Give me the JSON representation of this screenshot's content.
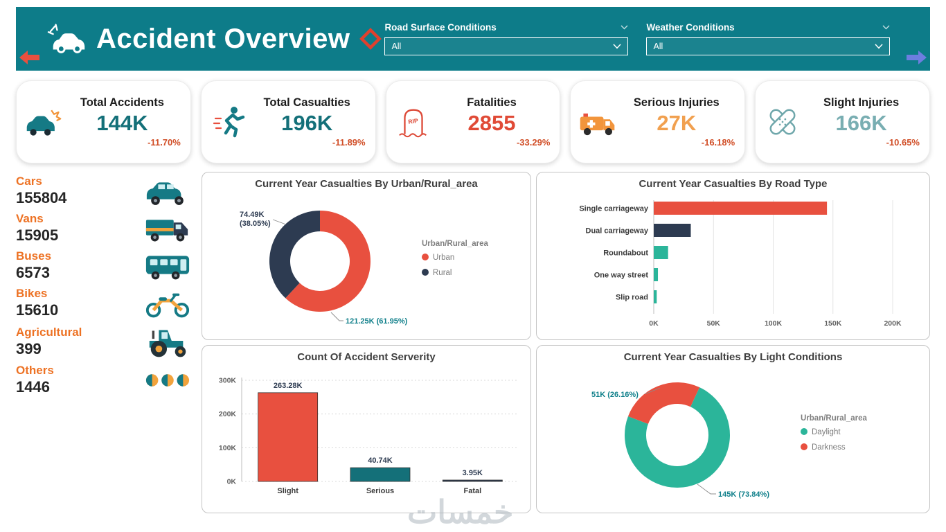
{
  "header": {
    "title": "Accident Overview",
    "filters": [
      {
        "label": "Road Surface Conditions",
        "value": "All"
      },
      {
        "label": "Weather Conditions",
        "value": "All"
      }
    ]
  },
  "kpis": [
    {
      "label": "Total Accidents",
      "value": "144K",
      "delta": "-11.70%",
      "icon": "car-crash-icon",
      "value_color": "#147079"
    },
    {
      "label": "Total Casualties",
      "value": "196K",
      "delta": "-11.89%",
      "icon": "running-person-icon",
      "value_color": "#147079"
    },
    {
      "label": "Fatalities",
      "value": "2855",
      "delta": "-33.29%",
      "icon": "tombstone-icon",
      "value_color": "#e04a36"
    },
    {
      "label": "Serious Injuries",
      "value": "27K",
      "delta": "-16.18%",
      "icon": "ambulance-icon",
      "value_color": "#f1a04f"
    },
    {
      "label": "Slight Injuries",
      "value": "166K",
      "delta": "-10.65%",
      "icon": "bandage-icon",
      "value_color": "#79aeb2"
    }
  ],
  "vehicles": [
    {
      "label": "Cars",
      "value": "155804",
      "icon": "car-icon"
    },
    {
      "label": "Vans",
      "value": "15905",
      "icon": "van-icon"
    },
    {
      "label": "Buses",
      "value": "6573",
      "icon": "bus-icon"
    },
    {
      "label": "Bikes",
      "value": "15610",
      "icon": "motorbike-icon"
    },
    {
      "label": "Agricultural",
      "value": "399",
      "icon": "tractor-icon"
    },
    {
      "label": "Others",
      "value": "1446",
      "icon": "dots-icon"
    }
  ],
  "chart_data": [
    {
      "type": "pie",
      "title": "Current Year Casualties By Urban/Rural_area",
      "legend_title": "Urban/Rural_area",
      "legend_position": "right",
      "slices": [
        {
          "name": "Urban",
          "value": 121250,
          "pct": 61.95,
          "callout": "121.25K (61.95%)",
          "color": "#e8503f",
          "callout_color": "#0f7f8a"
        },
        {
          "name": "Rural",
          "value": 74490,
          "pct": 38.05,
          "callout": "74.49K\n(38.05%)",
          "color": "#2d3b51",
          "callout_color": "#2d3b51"
        }
      ]
    },
    {
      "type": "bar",
      "orientation": "horizontal",
      "title": "Current Year Casualties By Road Type",
      "categories": [
        "Single carriageway",
        "Dual carriageway",
        "Roundabout",
        "One way street",
        "Slip road"
      ],
      "values": [
        145000,
        31000,
        12000,
        3500,
        2500
      ],
      "colors": [
        "#e8503f",
        "#2d3b51",
        "#2bb59a",
        "#2bb59a",
        "#2bb59a"
      ],
      "xticks": [
        "0K",
        "50K",
        "100K",
        "150K",
        "200K"
      ],
      "xlim": [
        0,
        200000
      ],
      "grid": true
    },
    {
      "type": "bar",
      "orientation": "vertical",
      "title": "Count Of Accident Serverity",
      "categories": [
        "Slight",
        "Serious",
        "Fatal"
      ],
      "values": [
        263280,
        40740,
        3950
      ],
      "bar_labels": [
        "263.28K",
        "40.74K",
        "3.95K"
      ],
      "colors": [
        "#e8503f",
        "#147079",
        "#2d3b51"
      ],
      "yticks": [
        "0K",
        "100K",
        "200K",
        "300K"
      ],
      "ylim": [
        0,
        300000
      ],
      "grid": true
    },
    {
      "type": "pie",
      "title": "Current Year Casualties By Light Conditions",
      "legend_title": "Urban/Rural_area",
      "legend_position": "right",
      "slices": [
        {
          "name": "Daylight",
          "value": 145000,
          "pct": 73.84,
          "callout": "145K (73.84%)",
          "color": "#2bb59a",
          "callout_color": "#0f7f8a"
        },
        {
          "name": "Darkness",
          "value": 51000,
          "pct": 26.16,
          "callout": "51K (26.16%)",
          "color": "#e8503f",
          "callout_color": "#0f7f8a"
        }
      ]
    }
  ],
  "watermark": "خمسات",
  "colors": {
    "header": "#0d7c89",
    "accent_orange": "#ed7224",
    "delta_red": "#d14f28",
    "bar_red": "#e8503f",
    "bar_navy": "#2d3b51",
    "bar_teal": "#2bb59a"
  }
}
